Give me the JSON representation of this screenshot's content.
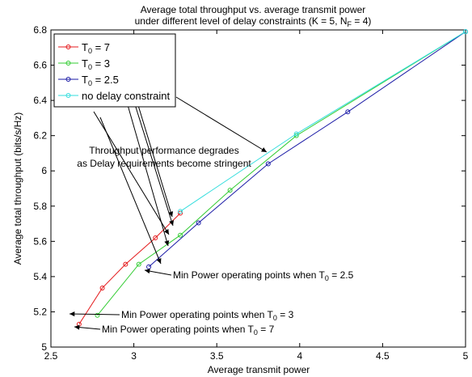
{
  "chart_data": {
    "type": "line",
    "title": {
      "line1": "Average total throughput vs. average transmit power",
      "line2_pre": "under different level of delay constraints (K = 5, N",
      "line2_sub": "F",
      "line2_post": " = 4)"
    },
    "xlabel": "Average transmit power",
    "ylabel": "Average total throughput (bits/s/Hz)",
    "xlim": [
      2.5,
      5
    ],
    "ylim": [
      5,
      6.8
    ],
    "xticks": [
      2.5,
      3,
      3.5,
      4,
      4.5,
      5
    ],
    "xtick_labels": [
      "2.5",
      "3",
      "3.5",
      "4",
      "4.5",
      "5"
    ],
    "yticks": [
      5,
      5.2,
      5.4,
      5.6,
      5.8,
      6,
      6.2,
      6.4,
      6.6,
      6.8
    ],
    "ytick_labels": [
      "5",
      "5.2",
      "5.4",
      "5.6",
      "5.8",
      "6",
      "6.2",
      "6.4",
      "6.6",
      "6.8"
    ],
    "grid": false,
    "legend_position": "top-left",
    "series": [
      {
        "label_pre": "T",
        "label_sub": "0",
        "label_post": " = 7",
        "color": "#e41a1c",
        "x": [
          2.67,
          2.81,
          2.95,
          3.13,
          3.28
        ],
        "y": [
          5.13,
          5.335,
          5.47,
          5.62,
          5.76
        ]
      },
      {
        "label_pre": "T",
        "label_sub": "0",
        "label_post": " = 3",
        "color": "#33cc33",
        "x": [
          2.78,
          3.03,
          3.28,
          3.58,
          3.98,
          5.0
        ],
        "y": [
          5.18,
          5.47,
          5.635,
          5.89,
          6.2,
          6.79
        ]
      },
      {
        "label_pre": "T",
        "label_sub": "0",
        "label_post": " = 2.5",
        "color": "#1a1aa6",
        "x": [
          3.09,
          3.39,
          3.81,
          4.29,
          5.0
        ],
        "y": [
          5.455,
          5.705,
          6.04,
          6.335,
          6.79
        ]
      },
      {
        "label_pre": "",
        "label_sub": "",
        "label_post": "no delay constraint",
        "color": "#33dddd",
        "x": [
          3.28,
          3.98,
          5.0
        ],
        "y": [
          5.77,
          6.21,
          6.79
        ]
      }
    ],
    "annotations": {
      "degrade_line1": "Throughput performance degrades",
      "degrade_line2": "as Delay requirements become stringent",
      "min25_pre": "Min Power operating points when T",
      "min25_sub": "0",
      "min25_post": " = 2.5",
      "min3_pre": "Min Power operating points when T",
      "min3_sub": "0",
      "min3_post": " = 3",
      "min7_pre": "Min Power operating points when T",
      "min7_sub": "0",
      "min7_post": " = 7"
    }
  }
}
